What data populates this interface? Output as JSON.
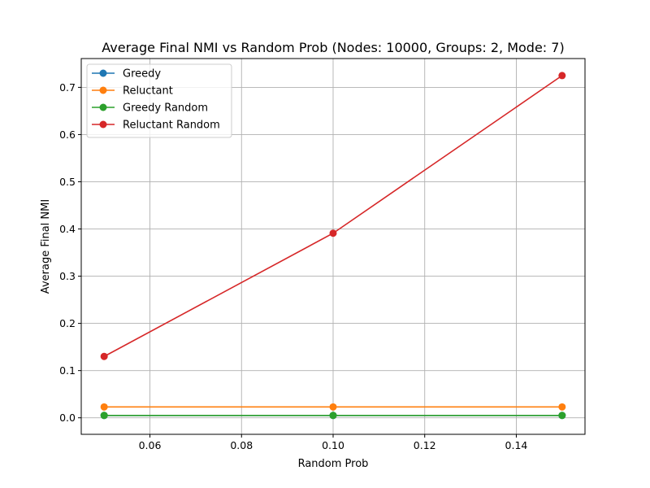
{
  "chart_data": {
    "type": "line",
    "title": "Average Final NMI vs Random Prob (Nodes: 10000, Groups: 2, Mode: 7)",
    "xlabel": "Random Prob",
    "ylabel": "Average Final NMI",
    "x": [
      0.05,
      0.1,
      0.15
    ],
    "xlim": [
      0.045,
      0.155
    ],
    "ylim": [
      -0.035,
      0.761
    ],
    "xticks": [
      0.06,
      0.08,
      0.1,
      0.12,
      0.14
    ],
    "xtick_labels": [
      "0.06",
      "0.08",
      "0.10",
      "0.12",
      "0.14"
    ],
    "yticks": [
      0.0,
      0.1,
      0.2,
      0.3,
      0.4,
      0.5,
      0.6,
      0.7
    ],
    "ytick_labels": [
      "0.0",
      "0.1",
      "0.2",
      "0.3",
      "0.4",
      "0.5",
      "0.6",
      "0.7"
    ],
    "grid": true,
    "legend_position": "top-left",
    "series": [
      {
        "name": "Greedy",
        "color": "#1f77b4",
        "values": [
          0.005,
          0.005,
          0.005
        ]
      },
      {
        "name": "Reluctant",
        "color": "#ff7f0e",
        "values": [
          0.023,
          0.023,
          0.023
        ]
      },
      {
        "name": "Greedy Random",
        "color": "#2ca02c",
        "values": [
          0.005,
          0.005,
          0.005
        ]
      },
      {
        "name": "Reluctant Random",
        "color": "#d62728",
        "values": [
          0.13,
          0.391,
          0.725
        ]
      }
    ]
  }
}
